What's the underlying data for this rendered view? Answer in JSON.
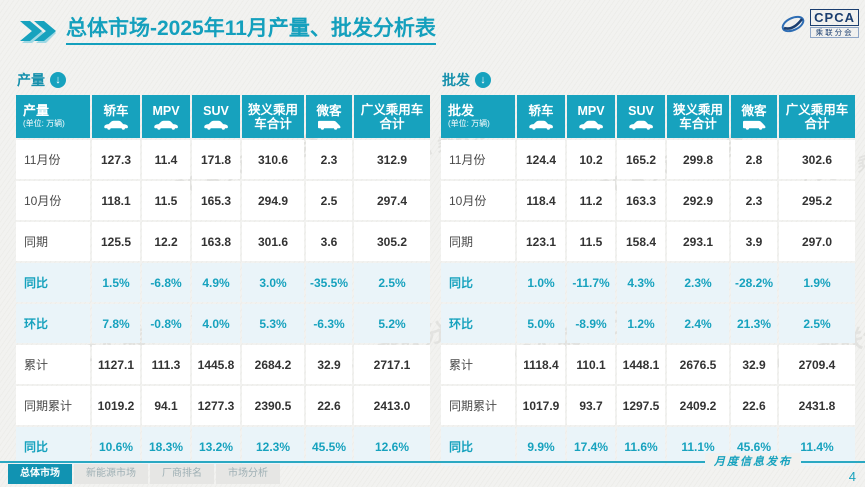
{
  "header": {
    "title_strong": "总体市场",
    "title_rest": "-2025年11月产量、批发分析表"
  },
  "logo": {
    "name": "CPCA",
    "subname": "乘联分会"
  },
  "unit_note": "(单位: 万辆)",
  "column_icons": [
    "sedan-icon",
    "mpv-icon",
    "suv-icon",
    "",
    "van-icon",
    ""
  ],
  "chart_data": [
    {
      "type": "table",
      "title": "产量",
      "unit": "万辆",
      "columns": [
        "轿车",
        "MPV",
        "SUV",
        "狭义乘用车合计",
        "微客",
        "广义乘用车合计"
      ],
      "rows": [
        {
          "label": "11月份",
          "highlight": false,
          "values": [
            "127.3",
            "11.4",
            "171.8",
            "310.6",
            "2.3",
            "312.9"
          ]
        },
        {
          "label": "10月份",
          "highlight": false,
          "values": [
            "118.1",
            "11.5",
            "165.3",
            "294.9",
            "2.5",
            "297.4"
          ]
        },
        {
          "label": "同期",
          "highlight": false,
          "values": [
            "125.5",
            "12.2",
            "163.8",
            "301.6",
            "3.6",
            "305.2"
          ]
        },
        {
          "label": "同比",
          "highlight": true,
          "values": [
            "1.5%",
            "-6.8%",
            "4.9%",
            "3.0%",
            "-35.5%",
            "2.5%"
          ]
        },
        {
          "label": "环比",
          "highlight": true,
          "values": [
            "7.8%",
            "-0.8%",
            "4.0%",
            "5.3%",
            "-6.3%",
            "5.2%"
          ]
        },
        {
          "label": "累计",
          "highlight": false,
          "values": [
            "1127.1",
            "111.3",
            "1445.8",
            "2684.2",
            "32.9",
            "2717.1"
          ]
        },
        {
          "label": "同期累计",
          "highlight": false,
          "values": [
            "1019.2",
            "94.1",
            "1277.3",
            "2390.5",
            "22.6",
            "2413.0"
          ]
        },
        {
          "label": "同比",
          "highlight": true,
          "values": [
            "10.6%",
            "18.3%",
            "13.2%",
            "12.3%",
            "45.5%",
            "12.6%"
          ]
        }
      ]
    },
    {
      "type": "table",
      "title": "批发",
      "unit": "万辆",
      "columns": [
        "轿车",
        "MPV",
        "SUV",
        "狭义乘用车合计",
        "微客",
        "广义乘用车合计"
      ],
      "rows": [
        {
          "label": "11月份",
          "highlight": false,
          "values": [
            "124.4",
            "10.2",
            "165.2",
            "299.8",
            "2.8",
            "302.6"
          ]
        },
        {
          "label": "10月份",
          "highlight": false,
          "values": [
            "118.4",
            "11.2",
            "163.3",
            "292.9",
            "2.3",
            "295.2"
          ]
        },
        {
          "label": "同期",
          "highlight": false,
          "values": [
            "123.1",
            "11.5",
            "158.4",
            "293.1",
            "3.9",
            "297.0"
          ]
        },
        {
          "label": "同比",
          "highlight": true,
          "values": [
            "1.0%",
            "-11.7%",
            "4.3%",
            "2.3%",
            "-28.2%",
            "1.9%"
          ]
        },
        {
          "label": "环比",
          "highlight": true,
          "values": [
            "5.0%",
            "-8.9%",
            "1.2%",
            "2.4%",
            "21.3%",
            "2.5%"
          ]
        },
        {
          "label": "累计",
          "highlight": false,
          "values": [
            "1118.4",
            "110.1",
            "1448.1",
            "2676.5",
            "32.9",
            "2709.4"
          ]
        },
        {
          "label": "同期累计",
          "highlight": false,
          "values": [
            "1017.9",
            "93.7",
            "1297.5",
            "2409.2",
            "22.6",
            "2431.8"
          ]
        },
        {
          "label": "同比",
          "highlight": true,
          "values": [
            "9.9%",
            "17.4%",
            "11.6%",
            "11.1%",
            "45.6%",
            "11.4%"
          ]
        }
      ]
    }
  ],
  "footer": {
    "tabs": [
      {
        "label": "总体市场",
        "active": true
      },
      {
        "label": "新能源市场",
        "active": false
      },
      {
        "label": "厂商排名",
        "active": false
      },
      {
        "label": "市场分析",
        "active": false
      }
    ],
    "release_label": "月度信息发布",
    "page_number": "4"
  },
  "watermark": {
    "text": "CPCA 乘联分会"
  },
  "colors": {
    "teal": "#17a2be",
    "highlight_row_bg": "#eaf4f9",
    "highlight_text": "#17a2be",
    "logo_navy": "#1b3e6f",
    "slide_bg": "#f1f1ef"
  }
}
